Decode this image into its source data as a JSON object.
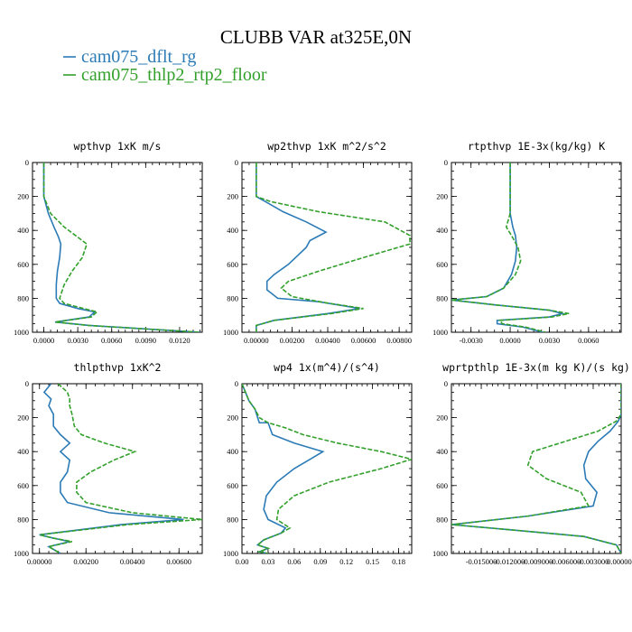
{
  "figure": {
    "title": "CLUBB VAR at325E,0N",
    "legend": [
      {
        "label": "cam075_dflt_rg",
        "color": "#2c7bb6",
        "dash": false
      },
      {
        "label": "cam075_thlp2_rtp2_floor",
        "color": "#33a02c",
        "dash": true
      }
    ]
  },
  "chart_data": [
    {
      "type": "line",
      "title": "wpthvp   1xK m/s",
      "xlim": [
        -0.001,
        0.014
      ],
      "ylim": [
        1000,
        0
      ],
      "xticks": [
        0.0,
        0.003,
        0.006,
        0.009,
        0.012
      ],
      "xtick_labels": [
        "0.0000",
        "0.0030",
        "0.0060",
        "0.0090",
        "0.0120"
      ],
      "yticks": [
        0,
        200,
        400,
        600,
        800,
        1000
      ],
      "ytick_labels": [
        "0",
        "200",
        "400",
        "600",
        "800",
        "1000"
      ],
      "series": [
        {
          "name": "cam075_dflt_rg",
          "x": [
            0.0,
            0.0,
            0.0,
            0.0004,
            0.0009,
            0.0013,
            0.0015,
            0.0014,
            0.0012,
            0.0011,
            0.0011,
            0.0014,
            0.003,
            0.0045,
            0.004,
            0.001,
            0.004,
            0.0138
          ],
          "y": [
            0,
            150,
            200,
            300,
            380,
            440,
            480,
            560,
            640,
            720,
            800,
            830,
            860,
            880,
            910,
            940,
            960,
            1000
          ]
        },
        {
          "name": "cam075_thlp2_rtp2_floor",
          "x": [
            0.0,
            0.0,
            0.0,
            0.0006,
            0.0018,
            0.003,
            0.0038,
            0.0034,
            0.0025,
            0.0018,
            0.0014,
            0.0018,
            0.0035,
            0.0047,
            0.0042,
            0.001,
            0.004,
            0.0138
          ],
          "y": [
            0,
            150,
            200,
            300,
            380,
            440,
            480,
            560,
            640,
            720,
            800,
            830,
            860,
            880,
            910,
            940,
            960,
            1000
          ]
        }
      ]
    },
    {
      "type": "line",
      "title": "wp2thvp   1xK m^2/s^2",
      "xlim": [
        -0.0008,
        0.0087
      ],
      "ylim": [
        1000,
        0
      ],
      "xticks": [
        0.0,
        0.002,
        0.004,
        0.006,
        0.008
      ],
      "xtick_labels": [
        "0.00000",
        "0.00200",
        "0.00400",
        "0.00600",
        "0.00800"
      ],
      "yticks": [
        0,
        200,
        400,
        600,
        800,
        1000
      ],
      "ytick_labels": [
        "0",
        "200",
        "400",
        "600",
        "800",
        "1000"
      ],
      "series": [
        {
          "name": "cam075_dflt_rg",
          "x": [
            0.0,
            0.0,
            0.0,
            0.0005,
            0.0015,
            0.0028,
            0.0039,
            0.003,
            0.0028,
            0.0018,
            0.001,
            0.0006,
            0.0006,
            0.0012,
            0.0035,
            0.0058,
            0.004,
            0.001,
            0.0,
            0.0
          ],
          "y": [
            0,
            150,
            200,
            230,
            290,
            350,
            410,
            460,
            500,
            600,
            660,
            700,
            750,
            800,
            820,
            860,
            890,
            930,
            960,
            1000
          ]
        },
        {
          "name": "cam075_thlp2_rtp2_floor",
          "x": [
            0.0,
            0.0,
            0.0,
            0.0008,
            0.0035,
            0.0072,
            0.0086,
            0.0086,
            0.006,
            0.0035,
            0.0018,
            0.0014,
            0.002,
            0.0038,
            0.006,
            0.0042,
            0.001,
            0.0,
            0.0
          ],
          "y": [
            0,
            150,
            200,
            230,
            290,
            350,
            430,
            480,
            560,
            640,
            700,
            740,
            790,
            825,
            860,
            890,
            930,
            960,
            1000
          ]
        }
      ]
    },
    {
      "type": "line",
      "title": "rtpthvp   1E-3x(kg/kg) K",
      "xlim": [
        -0.0045,
        0.0085
      ],
      "ylim": [
        1000,
        0
      ],
      "xticks": [
        -0.003,
        0.0,
        0.003,
        0.006
      ],
      "xtick_labels": [
        "-0.0030",
        "0.0000",
        "0.0030",
        "0.0060"
      ],
      "yticks": [
        0,
        200,
        400,
        600,
        800,
        1000
      ],
      "ytick_labels": [
        "0",
        "200",
        "400",
        "600",
        "800",
        "1000"
      ],
      "series": [
        {
          "name": "cam075_dflt_rg",
          "x": [
            0.0,
            0.0,
            0.0,
            0.0002,
            0.0004,
            0.0005,
            0.0004,
            0.0001,
            -0.0005,
            -0.0018,
            -0.0045,
            -0.001,
            0.003,
            0.004,
            0.003,
            -0.001,
            -0.001,
            0.001,
            0.0025
          ],
          "y": [
            0,
            200,
            300,
            380,
            430,
            500,
            580,
            660,
            740,
            790,
            810,
            840,
            870,
            890,
            910,
            930,
            950,
            970,
            1000
          ]
        },
        {
          "name": "cam075_thlp2_rtp2_floor",
          "x": [
            0.0,
            0.0,
            0.0,
            -0.0003,
            0.0001,
            0.0006,
            0.0008,
            0.0004,
            -0.0005,
            -0.0018,
            -0.0045,
            -0.001,
            0.003,
            0.0045,
            0.0032,
            -0.0008,
            -0.0006,
            0.0012,
            0.0027
          ],
          "y": [
            0,
            200,
            300,
            380,
            430,
            500,
            580,
            660,
            740,
            790,
            810,
            840,
            870,
            890,
            910,
            930,
            950,
            970,
            1000
          ]
        }
      ]
    },
    {
      "type": "line",
      "title": "thlpthvp   1xK^2",
      "xlim": [
        -0.0003,
        0.007
      ],
      "ylim": [
        1000,
        0
      ],
      "xticks": [
        0.0,
        0.002,
        0.004,
        0.006
      ],
      "xtick_labels": [
        "0.00000",
        "0.00200",
        "0.00400",
        "0.00600"
      ],
      "yticks": [
        0,
        200,
        400,
        600,
        800,
        1000
      ],
      "ytick_labels": [
        "0",
        "200",
        "400",
        "600",
        "800",
        "1000"
      ],
      "series": [
        {
          "name": "cam075_dflt_rg",
          "x": [
            0.0005,
            0.0002,
            0.0005,
            0.0004,
            0.0006,
            0.0006,
            0.0009,
            0.0013,
            0.0009,
            0.0013,
            0.0012,
            0.0009,
            0.0009,
            0.0012,
            0.003,
            0.0062,
            0.0035,
            0.0,
            0.0006,
            0.0013,
            0.0004,
            0.0009
          ],
          "y": [
            0,
            50,
            90,
            130,
            180,
            250,
            300,
            350,
            400,
            450,
            520,
            580,
            640,
            700,
            760,
            800,
            830,
            890,
            910,
            930,
            960,
            1000
          ]
        },
        {
          "name": "cam075_thlp2_rtp2_floor",
          "x": [
            0.0008,
            0.0012,
            0.0013,
            0.0013,
            0.0014,
            0.0015,
            0.0018,
            0.0028,
            0.0041,
            0.0032,
            0.0022,
            0.0016,
            0.0016,
            0.002,
            0.004,
            0.007,
            0.0038,
            0.0,
            0.0006,
            0.0014,
            0.0004,
            0.0009
          ],
          "y": [
            0,
            50,
            90,
            130,
            180,
            250,
            300,
            350,
            400,
            450,
            520,
            580,
            640,
            700,
            760,
            800,
            830,
            890,
            910,
            930,
            960,
            1000
          ]
        }
      ]
    },
    {
      "type": "line",
      "title": "wp4   1x(m^4)/(s^4)",
      "xlim": [
        0.0,
        0.195
      ],
      "ylim": [
        1000,
        0
      ],
      "xticks": [
        0.0,
        0.03,
        0.06,
        0.09,
        0.12,
        0.15,
        0.18
      ],
      "xtick_labels": [
        "0.00",
        "0.03",
        "0.06",
        "0.09",
        "0.12",
        "0.15",
        "0.18"
      ],
      "yticks": [
        0,
        200,
        400,
        600,
        800,
        1000
      ],
      "ytick_labels": [
        "0",
        "200",
        "400",
        "600",
        "800",
        "1000"
      ],
      "series": [
        {
          "name": "cam075_dflt_rg",
          "x": [
            0.0,
            0.008,
            0.015,
            0.018,
            0.02,
            0.03,
            0.035,
            0.06,
            0.093,
            0.08,
            0.06,
            0.04,
            0.028,
            0.025,
            0.03,
            0.05,
            0.045,
            0.025,
            0.018,
            0.03,
            0.02,
            0.03
          ],
          "y": [
            0,
            100,
            150,
            200,
            230,
            230,
            300,
            350,
            400,
            440,
            500,
            580,
            660,
            740,
            800,
            850,
            880,
            920,
            950,
            970,
            990,
            1000
          ]
        },
        {
          "name": "cam075_thlp2_rtp2_floor",
          "x": [
            0.0,
            0.008,
            0.015,
            0.02,
            0.03,
            0.05,
            0.07,
            0.11,
            0.16,
            0.195,
            0.16,
            0.1,
            0.06,
            0.042,
            0.04,
            0.055,
            0.045,
            0.025,
            0.018,
            0.03,
            0.02,
            0.03
          ],
          "y": [
            0,
            100,
            150,
            200,
            230,
            260,
            300,
            350,
            400,
            445,
            500,
            580,
            660,
            740,
            800,
            850,
            880,
            920,
            950,
            970,
            990,
            1000
          ]
        }
      ]
    },
    {
      "type": "line",
      "title": "wprtpthlp   1E-3x(m kg K)/(s kg)",
      "xlim": [
        -0.0182,
        0.0
      ],
      "ylim": [
        1000,
        0
      ],
      "xticks": [
        -0.015,
        -0.012,
        -0.009,
        -0.006,
        -0.003,
        0.0
      ],
      "xtick_labels": [
        "-0.015000",
        "-0.012000",
        "-0.009000",
        "-0.006000",
        "-0.003000",
        "0.000000"
      ],
      "yticks": [
        0,
        200,
        400,
        600,
        800,
        1000
      ],
      "ytick_labels": [
        "0",
        "200",
        "400",
        "600",
        "800",
        "1000"
      ],
      "series": [
        {
          "name": "cam075_dflt_rg",
          "x": [
            0.0,
            0.0,
            -0.0003,
            -0.0012,
            -0.0025,
            -0.0035,
            -0.004,
            -0.0038,
            -0.0026,
            -0.003,
            -0.01,
            -0.0182,
            -0.012,
            -0.004,
            -0.0005,
            0.0
          ],
          "y": [
            0,
            180,
            220,
            280,
            340,
            400,
            480,
            560,
            640,
            720,
            780,
            830,
            860,
            900,
            950,
            1000
          ]
        },
        {
          "name": "cam075_thlp2_rtp2_floor",
          "x": [
            0.0,
            0.0,
            -0.0005,
            -0.0025,
            -0.006,
            -0.0095,
            -0.01,
            -0.008,
            -0.0043,
            -0.0035,
            -0.01,
            -0.0182,
            -0.012,
            -0.004,
            -0.0005,
            0.0
          ],
          "y": [
            0,
            180,
            220,
            280,
            340,
            400,
            480,
            560,
            640,
            720,
            780,
            830,
            860,
            900,
            950,
            1000
          ]
        }
      ]
    }
  ]
}
